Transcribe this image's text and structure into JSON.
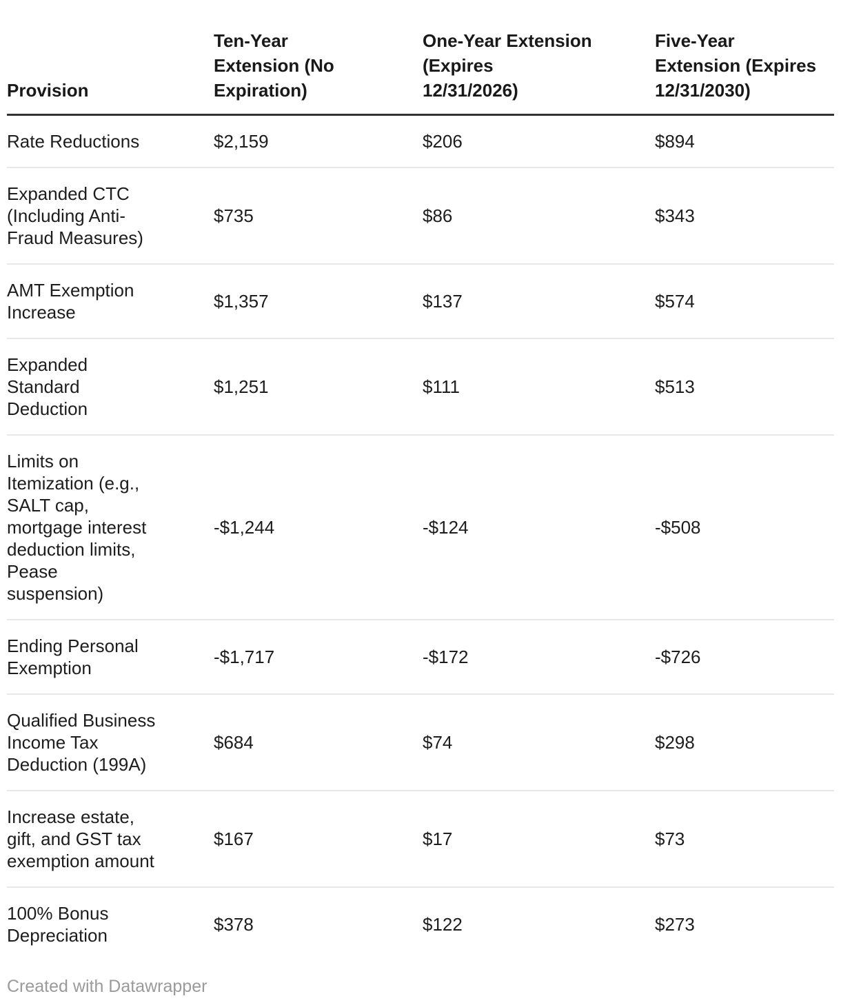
{
  "table": {
    "columns": [
      "Provision",
      "Ten-Year Extension (No Expiration)",
      "One-Year Extension (Expires 12/31/2026)",
      "Five-Year Extension (Expires 12/31/2030)"
    ],
    "rows": [
      {
        "provision": "Rate Reductions",
        "values": [
          "$2,159",
          "$206",
          "$894"
        ]
      },
      {
        "provision": "Expanded CTC (Including Anti-Fraud Measures)",
        "values": [
          "$735",
          "$86",
          "$343"
        ]
      },
      {
        "provision": "AMT Exemption Increase",
        "values": [
          "$1,357",
          "$137",
          "$574"
        ]
      },
      {
        "provision": "Expanded Standard Deduction",
        "values": [
          "$1,251",
          "$111",
          "$513"
        ]
      },
      {
        "provision": "Limits on Itemization (e.g., SALT cap, mortgage interest deduction limits, Pease suspension)",
        "values": [
          "-$1,244",
          "-$124",
          "-$508"
        ]
      },
      {
        "provision": "Ending Personal Exemption",
        "values": [
          "-$1,717",
          "-$172",
          "-$726"
        ]
      },
      {
        "provision": "Qualified Business Income Tax Deduction (199A)",
        "values": [
          "$684",
          "$74",
          "$298"
        ]
      },
      {
        "provision": "Increase estate, gift, and GST tax exemption amount",
        "values": [
          "$167",
          "$17",
          "$73"
        ]
      },
      {
        "provision": "100% Bonus Depreciation",
        "values": [
          "$378",
          "$122",
          "$273"
        ]
      }
    ]
  },
  "footer": {
    "credit": "Created with Datawrapper"
  },
  "colors": {
    "body_text": "#1d1d1d",
    "header_text": "#191919",
    "header_rule": "#333333",
    "row_rule": "#e8e8e8",
    "credit_text": "#9a9a9a",
    "background": "#ffffff"
  },
  "chart_data": {
    "type": "table",
    "title": "",
    "columns": [
      "Provision",
      "Ten-Year Extension (No Expiration)",
      "One-Year Extension (Expires 12/31/2026)",
      "Five-Year Extension (Expires 12/31/2030)"
    ],
    "categories": [
      "Rate Reductions",
      "Expanded CTC (Including Anti-Fraud Measures)",
      "AMT Exemption Increase",
      "Expanded Standard Deduction",
      "Limits on Itemization (e.g., SALT cap, mortgage interest deduction limits, Pease suspension)",
      "Ending Personal Exemption",
      "Qualified Business Income Tax Deduction (199A)",
      "Increase estate, gift, and GST tax exemption amount",
      "100% Bonus Depreciation"
    ],
    "series": [
      {
        "name": "Ten-Year Extension (No Expiration)",
        "values": [
          2159,
          735,
          1357,
          1251,
          -1244,
          -1717,
          684,
          167,
          378
        ]
      },
      {
        "name": "One-Year Extension (Expires 12/31/2026)",
        "values": [
          206,
          86,
          137,
          111,
          -124,
          -172,
          74,
          17,
          122
        ]
      },
      {
        "name": "Five-Year Extension (Expires 12/31/2030)",
        "values": [
          894,
          343,
          574,
          513,
          -508,
          -726,
          298,
          73,
          273
        ]
      }
    ],
    "layout": {
      "grid": "horizontal-row-rules",
      "legend": "none",
      "values_format": "currency-billions"
    }
  }
}
